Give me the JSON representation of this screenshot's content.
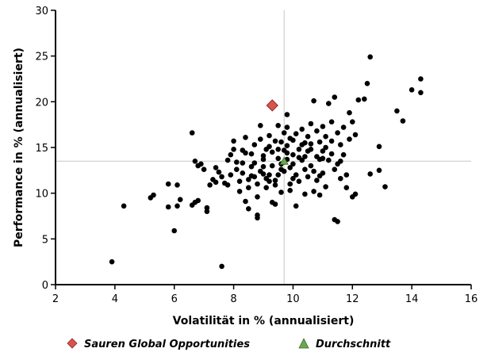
{
  "chart_data": {
    "type": "scatter",
    "xlabel": "Volatilität in % (annualisiert)",
    "ylabel": "Performance in % (annualisiert)",
    "xlim": [
      2,
      16
    ],
    "ylim": [
      0,
      30
    ],
    "x_ticks": [
      2,
      4,
      6,
      8,
      10,
      12,
      14,
      16
    ],
    "y_ticks": [
      0,
      5,
      10,
      15,
      20,
      25,
      30
    ],
    "grid": false,
    "legend": {
      "position": "bottom",
      "items": [
        {
          "label": "Sauren Global Opportunities",
          "marker": "diamond",
          "color": "#d9534f"
        },
        {
          "label": "Durchschnitt",
          "marker": "triangle",
          "color": "#6aa84f"
        }
      ]
    },
    "crosshair": {
      "x": 9.7,
      "y": 13.5
    },
    "highlight": {
      "name": "Sauren Global Opportunities",
      "x": 9.3,
      "y": 19.6,
      "color": "#d9534f"
    },
    "average": {
      "name": "Durchschnitt",
      "x": 9.7,
      "y": 13.5,
      "color": "#6aa84f"
    },
    "series": [
      {
        "name": "",
        "points": [
          [
            3.9,
            2.5
          ],
          [
            4.3,
            8.6
          ],
          [
            5.2,
            9.5
          ],
          [
            5.3,
            9.8
          ],
          [
            5.8,
            8.5
          ],
          [
            5.8,
            11.0
          ],
          [
            6.0,
            5.9
          ],
          [
            6.1,
            10.9
          ],
          [
            6.1,
            8.6
          ],
          [
            6.2,
            9.3
          ],
          [
            6.6,
            16.6
          ],
          [
            6.6,
            8.7
          ],
          [
            6.7,
            9.0
          ],
          [
            6.8,
            9.2
          ],
          [
            6.7,
            13.5
          ],
          [
            6.8,
            13.0
          ],
          [
            6.9,
            13.2
          ],
          [
            7.0,
            12.6
          ],
          [
            7.1,
            8.4
          ],
          [
            7.1,
            8.0
          ],
          [
            7.2,
            10.9
          ],
          [
            7.3,
            11.5
          ],
          [
            7.4,
            12.8
          ],
          [
            7.4,
            11.2
          ],
          [
            7.5,
            12.3
          ],
          [
            7.6,
            11.8
          ],
          [
            7.6,
            2.0
          ],
          [
            7.7,
            11.1
          ],
          [
            7.8,
            10.9
          ],
          [
            7.8,
            13.6
          ],
          [
            7.9,
            12.0
          ],
          [
            7.9,
            14.2
          ],
          [
            8.0,
            15.7
          ],
          [
            8.0,
            14.8
          ],
          [
            8.1,
            13.4
          ],
          [
            8.1,
            12.6
          ],
          [
            8.2,
            10.2
          ],
          [
            8.2,
            11.3
          ],
          [
            8.3,
            12.2
          ],
          [
            8.3,
            13.3
          ],
          [
            8.4,
            16.1
          ],
          [
            8.4,
            14.4
          ],
          [
            8.4,
            9.1
          ],
          [
            8.5,
            11.5
          ],
          [
            8.5,
            10.6
          ],
          [
            8.5,
            8.3
          ],
          [
            8.6,
            14.3
          ],
          [
            8.6,
            12.9
          ],
          [
            8.7,
            15.3
          ],
          [
            8.7,
            13.3
          ],
          [
            8.7,
            11.8
          ],
          [
            8.8,
            11.0
          ],
          [
            8.8,
            9.6
          ],
          [
            8.8,
            7.3
          ],
          [
            8.8,
            7.6
          ],
          [
            8.9,
            17.4
          ],
          [
            8.9,
            12.4
          ],
          [
            8.9,
            15.9
          ],
          [
            9.0,
            14.1
          ],
          [
            9.0,
            13.7
          ],
          [
            9.0,
            12.1
          ],
          [
            9.1,
            10.6
          ],
          [
            9.1,
            11.6
          ],
          [
            9.1,
            14.8
          ],
          [
            9.2,
            16.3
          ],
          [
            9.2,
            15.1
          ],
          [
            9.2,
            12.0
          ],
          [
            9.3,
            13.0
          ],
          [
            9.3,
            9.0
          ],
          [
            9.3,
            14.5
          ],
          [
            9.4,
            10.9
          ],
          [
            9.4,
            8.8
          ],
          [
            9.4,
            11.4
          ],
          [
            9.5,
            13.8
          ],
          [
            9.5,
            14.8
          ],
          [
            9.5,
            17.4
          ],
          [
            9.6,
            15.6
          ],
          [
            9.6,
            12.6
          ],
          [
            9.6,
            10.1
          ],
          [
            9.7,
            12.4
          ],
          [
            9.7,
            14.7
          ],
          [
            9.7,
            16.6
          ],
          [
            9.8,
            18.6
          ],
          [
            9.8,
            17.2
          ],
          [
            9.8,
            15.2
          ],
          [
            9.8,
            13.7
          ],
          [
            9.9,
            16.0
          ],
          [
            9.9,
            12.8
          ],
          [
            9.9,
            11.0
          ],
          [
            9.9,
            10.3
          ],
          [
            10.0,
            13.2
          ],
          [
            10.0,
            15.8
          ],
          [
            10.0,
            14.2
          ],
          [
            10.1,
            16.5
          ],
          [
            10.1,
            12.0
          ],
          [
            10.1,
            8.6
          ],
          [
            10.2,
            14.8
          ],
          [
            10.2,
            11.3
          ],
          [
            10.3,
            17.0
          ],
          [
            10.3,
            15.3
          ],
          [
            10.3,
            13.6
          ],
          [
            10.4,
            14.0
          ],
          [
            10.4,
            12.6
          ],
          [
            10.4,
            9.9
          ],
          [
            10.5,
            16.2
          ],
          [
            10.5,
            14.6
          ],
          [
            10.5,
            11.8
          ],
          [
            10.6,
            17.6
          ],
          [
            10.6,
            15.4
          ],
          [
            10.6,
            13.0
          ],
          [
            10.7,
            10.2
          ],
          [
            10.7,
            12.4
          ],
          [
            10.7,
            20.1
          ],
          [
            10.8,
            16.8
          ],
          [
            10.8,
            14.0
          ],
          [
            10.8,
            11.4
          ],
          [
            10.9,
            15.6
          ],
          [
            10.9,
            13.7
          ],
          [
            10.9,
            9.8
          ],
          [
            11.0,
            17.3
          ],
          [
            11.0,
            14.6
          ],
          [
            11.0,
            12.2
          ],
          [
            11.1,
            15.0
          ],
          [
            11.1,
            16.2
          ],
          [
            11.1,
            10.7
          ],
          [
            11.2,
            19.8
          ],
          [
            11.2,
            13.6
          ],
          [
            11.3,
            17.8
          ],
          [
            11.3,
            15.7
          ],
          [
            11.3,
            14.3
          ],
          [
            11.4,
            12.6
          ],
          [
            11.4,
            7.1
          ],
          [
            11.4,
            20.5
          ],
          [
            11.5,
            16.6
          ],
          [
            11.5,
            13.2
          ],
          [
            11.5,
            6.9
          ],
          [
            11.6,
            15.3
          ],
          [
            11.6,
            11.6
          ],
          [
            11.7,
            17.2
          ],
          [
            11.7,
            14.2
          ],
          [
            11.8,
            12.0
          ],
          [
            11.8,
            10.6
          ],
          [
            11.9,
            18.8
          ],
          [
            11.9,
            15.9
          ],
          [
            12.0,
            9.6
          ],
          [
            12.0,
            17.8
          ],
          [
            12.1,
            9.9
          ],
          [
            12.1,
            16.4
          ],
          [
            12.2,
            20.2
          ],
          [
            12.4,
            20.3
          ],
          [
            12.5,
            22.0
          ],
          [
            12.6,
            24.9
          ],
          [
            12.6,
            12.1
          ],
          [
            12.9,
            15.1
          ],
          [
            12.9,
            12.5
          ],
          [
            13.1,
            10.7
          ],
          [
            13.5,
            19.0
          ],
          [
            13.7,
            17.9
          ],
          [
            14.0,
            21.3
          ],
          [
            14.3,
            22.5
          ],
          [
            14.3,
            21.0
          ],
          [
            9.6,
            13.2
          ],
          [
            10.2,
            13.9
          ],
          [
            9.0,
            12.9
          ],
          [
            10.6,
            14.8
          ],
          [
            9.4,
            15.7
          ],
          [
            8.6,
            11.9
          ],
          [
            11.0,
            13.8
          ],
          [
            9.8,
            14.4
          ],
          [
            10.4,
            15.5
          ],
          [
            9.2,
            11.3
          ],
          [
            8.3,
            14.7
          ],
          [
            10.9,
            11.9
          ],
          [
            11.6,
            13.5
          ],
          [
            9.5,
            12.0
          ],
          [
            10.0,
            11.6
          ]
        ]
      }
    ]
  }
}
